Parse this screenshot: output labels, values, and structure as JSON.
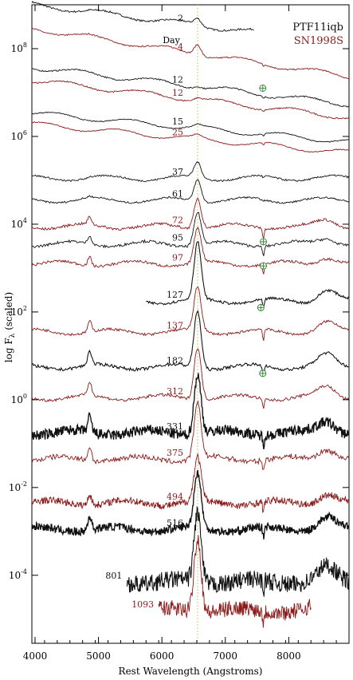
{
  "chart_data": {
    "type": "line",
    "xlabel": "Rest Wavelength (Angstroms)",
    "ylabel_main": "log F",
    "ylabel_sub": "λ",
    "ylabel_suffix": "(scaled)",
    "xlim": [
      3950,
      8950
    ],
    "xticks": [
      {
        "value": 4000,
        "label": "4000"
      },
      {
        "value": 5000,
        "label": "5000"
      },
      {
        "value": 6000,
        "label": "6000"
      },
      {
        "value": 7000,
        "label": "7000"
      },
      {
        "value": 8000,
        "label": "8000"
      }
    ],
    "ylim_log10": [
      -5.55,
      9.0
    ],
    "yticks": [
      {
        "exp": 8,
        "base": "10",
        "power": "8"
      },
      {
        "exp": 6,
        "base": "10",
        "power": "6"
      },
      {
        "exp": 4,
        "base": "10",
        "power": "4"
      },
      {
        "exp": 2,
        "base": "10",
        "power": "2"
      },
      {
        "exp": 0,
        "base": "10",
        "power": "0"
      },
      {
        "exp": -2,
        "base": "10",
        "power": "-2"
      },
      {
        "exp": -4,
        "base": "10",
        "power": "-4"
      }
    ],
    "reference_line": {
      "x": 6563,
      "color": "#c8c87a"
    },
    "epoch_header": "Day",
    "legend": [
      {
        "name": "PTF11iqb",
        "color": "#111111"
      },
      {
        "name": "SN1998S",
        "color": "#8b1a1a"
      }
    ],
    "colors": {
      "PTF11iqb": "#111111",
      "SN1998S": "#8b1a1a",
      "telluric": "#3c8a3c"
    },
    "series": [
      {
        "label": "2",
        "object": "PTF11iqb",
        "x_range": [
          3950,
          7450
        ],
        "log10_level": 8.55,
        "slope": -0.18,
        "peak": 0.15,
        "noise": 0.02,
        "width": 1.0
      },
      {
        "label": "4",
        "object": "SN1998S",
        "x_range": [
          3950,
          8950
        ],
        "log10_level": 7.9,
        "slope": -0.22,
        "peak": 0.25,
        "noise": 0.015,
        "width": 1.0
      },
      {
        "label": "12",
        "object": "PTF11iqb",
        "x_range": [
          3950,
          8950
        ],
        "log10_level": 7.15,
        "slope": -0.17,
        "peak": 0.05,
        "noise": 0.015,
        "width": 1.0
      },
      {
        "label": "12",
        "object": "SN1998S",
        "x_range": [
          3950,
          8950
        ],
        "log10_level": 6.85,
        "slope": -0.17,
        "peak": 0.05,
        "noise": 0.015,
        "width": 1.0
      },
      {
        "label": "15",
        "object": "PTF11iqb",
        "x_range": [
          3950,
          8950
        ],
        "log10_level": 6.2,
        "slope": -0.13,
        "peak": 0.05,
        "noise": 0.01,
        "width": 1.0
      },
      {
        "label": "25",
        "object": "SN1998S",
        "x_range": [
          3950,
          8950
        ],
        "log10_level": 5.95,
        "slope": -0.13,
        "peak": 0.05,
        "noise": 0.01,
        "width": 1.0
      },
      {
        "label": "37",
        "object": "PTF11iqb",
        "x_range": [
          3950,
          8950
        ],
        "log10_level": 5.05,
        "slope": 0.0,
        "peak": 0.35,
        "noise": 0.02,
        "width": 1.0
      },
      {
        "label": "61",
        "object": "PTF11iqb",
        "x_range": [
          3950,
          8950
        ],
        "log10_level": 4.55,
        "slope": 0.0,
        "peak": 0.5,
        "noise": 0.02,
        "width": 1.0
      },
      {
        "label": "72",
        "object": "SN1998S",
        "x_range": [
          3950,
          8950
        ],
        "log10_level": 3.95,
        "slope": 0.0,
        "peak": 0.7,
        "noise": 0.03,
        "width": 1.0
      },
      {
        "label": "95",
        "object": "PTF11iqb",
        "x_range": [
          3950,
          8950
        ],
        "log10_level": 3.55,
        "slope": 0.0,
        "peak": 0.75,
        "noise": 0.03,
        "width": 1.0
      },
      {
        "label": "97",
        "object": "SN1998S",
        "x_range": [
          3950,
          8950
        ],
        "log10_level": 3.1,
        "slope": 0.0,
        "peak": 0.8,
        "noise": 0.03,
        "width": 1.0
      },
      {
        "label": "127",
        "object": "PTF11iqb",
        "x_range": [
          5750,
          8950
        ],
        "log10_level": 2.25,
        "slope": 0.0,
        "peak": 1.3,
        "noise": 0.03,
        "width": 1.2
      },
      {
        "label": "137",
        "object": "SN1998S",
        "x_range": [
          3950,
          8950
        ],
        "log10_level": 1.55,
        "slope": 0.0,
        "peak": 1.0,
        "noise": 0.03,
        "width": 1.0
      },
      {
        "label": "182",
        "object": "PTF11iqb",
        "x_range": [
          3950,
          8950
        ],
        "log10_level": 0.75,
        "slope": 0.0,
        "peak": 1.3,
        "noise": 0.035,
        "width": 1.2
      },
      {
        "label": "312",
        "object": "SN1998S",
        "x_range": [
          3950,
          8950
        ],
        "log10_level": 0.05,
        "slope": 0.0,
        "peak": 1.2,
        "noise": 0.035,
        "width": 1.0
      },
      {
        "label": "331",
        "object": "PTF11iqb",
        "x_range": [
          3950,
          8950
        ],
        "log10_level": -0.75,
        "slope": 0.0,
        "peak": 1.35,
        "noise": 0.12,
        "width": 1.5
      },
      {
        "label": "375",
        "object": "SN1998S",
        "x_range": [
          3950,
          8950
        ],
        "log10_level": -1.35,
        "slope": 0.0,
        "peak": 1.25,
        "noise": 0.06,
        "width": 1.0
      },
      {
        "label": "494",
        "object": "SN1998S",
        "x_range": [
          3950,
          8950
        ],
        "log10_level": -2.35,
        "slope": 0.0,
        "peak": 1.0,
        "noise": 0.08,
        "width": 1.0
      },
      {
        "label": "516",
        "object": "PTF11iqb",
        "x_range": [
          3950,
          8950
        ],
        "log10_level": -2.95,
        "slope": 0.0,
        "peak": 1.25,
        "noise": 0.09,
        "width": 1.5
      },
      {
        "label": "801",
        "object": "PTF11iqb",
        "x_range": [
          5450,
          8950
        ],
        "log10_level": -4.15,
        "slope": 0.0,
        "peak": 1.6,
        "noise": 0.2,
        "width": 1.2
      },
      {
        "label": "1093",
        "object": "SN1998S",
        "x_range": [
          5950,
          8350
        ],
        "log10_level": -4.8,
        "slope": 0.0,
        "peak": 1.7,
        "noise": 0.18,
        "width": 1.0
      }
    ]
  }
}
